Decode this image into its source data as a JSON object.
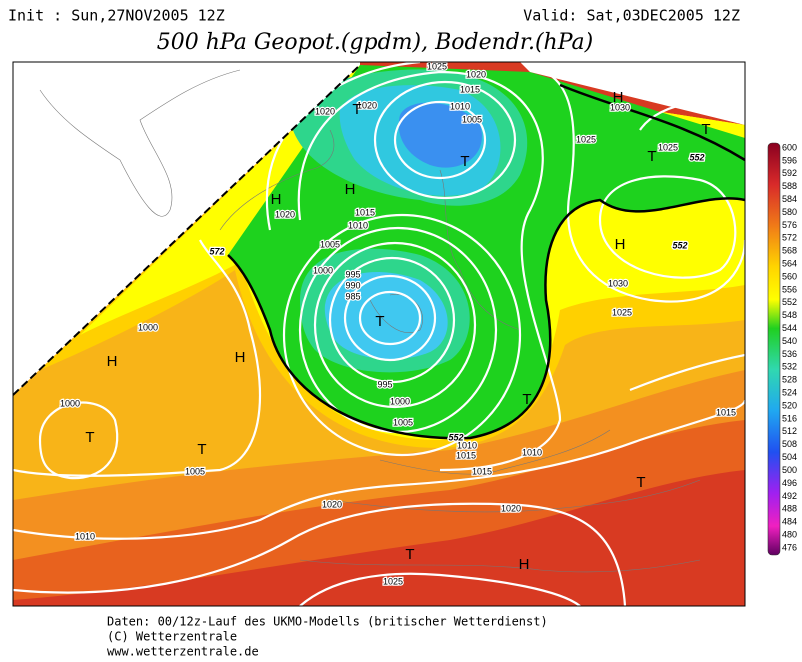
{
  "header": {
    "init": "Init : Sun,27NOV2005 12Z",
    "valid": "Valid: Sat,03DEC2005 12Z",
    "title": "500 hPa Geopot.(gpdm), Bodendr.(hPa)"
  },
  "map": {
    "isobar_labels": [
      "1025",
      "1020",
      "1015",
      "1010",
      "1005",
      "1020",
      "1020",
      "1030",
      "1025",
      "1025",
      "1015",
      "1010",
      "1005",
      "1000",
      "995",
      "990",
      "985",
      "995",
      "1000",
      "1005",
      "1010",
      "1010",
      "1015",
      "1015",
      "1000",
      "1000",
      "1005",
      "1020",
      "1020",
      "1010",
      "1025",
      "1030",
      "1025",
      "1015",
      "1020"
    ],
    "pressure_centers": [
      "T",
      "T",
      "H",
      "H",
      "H",
      "T",
      "T",
      "H",
      "T",
      "H",
      "H",
      "T",
      "T",
      "T",
      "T",
      "T",
      "H"
    ],
    "contour_labels": [
      "552",
      "552",
      "552",
      "572"
    ]
  },
  "colorbar": {
    "labels": [
      "600",
      "596",
      "592",
      "588",
      "584",
      "580",
      "576",
      "572",
      "568",
      "564",
      "560",
      "556",
      "552",
      "548",
      "544",
      "540",
      "536",
      "532",
      "528",
      "524",
      "520",
      "516",
      "512",
      "508",
      "504",
      "500",
      "496",
      "492",
      "488",
      "484",
      "480",
      "476"
    ]
  },
  "footer": {
    "lines": [
      "Daten: 00/12z-Lauf des UKMO-Modells (britischer Wetterdienst)",
      "(C) Wetterzentrale",
      "www.wetterzentrale.de"
    ]
  }
}
